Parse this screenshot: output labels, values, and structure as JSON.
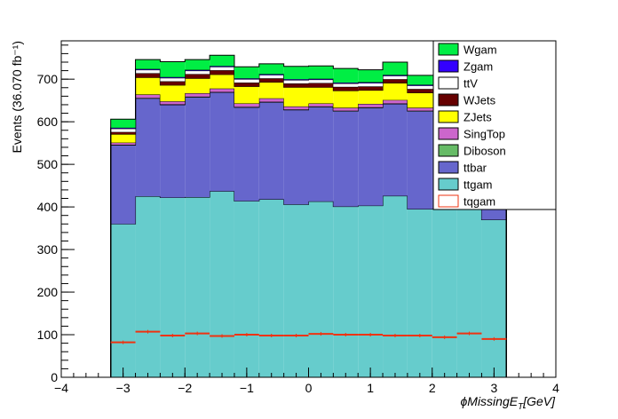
{
  "chart_data": {
    "type": "stacked-histogram",
    "xlabel": "φMissingE_T[GeV]",
    "ylabel": "Events (36.070 fb⁻¹)",
    "xlim": [
      -4,
      4
    ],
    "ylim": [
      0,
      790
    ],
    "x_ticks": [
      -4,
      -3,
      -2,
      -1,
      0,
      1,
      2,
      3,
      4
    ],
    "y_ticks": [
      0,
      100,
      200,
      300,
      400,
      500,
      600,
      700
    ],
    "bin_edges": [
      -3.2,
      -2.8,
      -2.4,
      -2.0,
      -1.6,
      -1.2,
      -0.8,
      -0.4,
      0.0,
      0.4,
      0.8,
      1.2,
      1.6,
      2.0,
      2.4,
      2.8,
      3.2
    ],
    "legend_position": "top-right",
    "series": [
      {
        "name": "ttgam",
        "color": "#66cccc",
        "values": [
          360,
          425,
          422,
          423,
          437,
          414,
          418,
          406,
          413,
          401,
          403,
          426,
          395,
          395,
          395,
          370
        ]
      },
      {
        "name": "ttbar",
        "color": "#6666cc",
        "values": [
          185,
          230,
          218,
          235,
          232,
          220,
          228,
          222,
          222,
          224,
          230,
          216,
          230,
          230,
          230,
          225
        ]
      },
      {
        "name": "Diboson",
        "color": "#66bb66",
        "values": [
          1,
          1,
          1,
          1,
          1,
          1,
          1,
          1,
          1,
          1,
          1,
          1,
          1,
          1,
          1,
          1
        ]
      },
      {
        "name": "SingTop",
        "color": "#cc66cc",
        "values": [
          5,
          8,
          7,
          8,
          8,
          8,
          8,
          7,
          7,
          7,
          8,
          8,
          7,
          7,
          7,
          6
        ]
      },
      {
        "name": "ZJets",
        "color": "#ffff00",
        "values": [
          20,
          40,
          38,
          35,
          33,
          40,
          38,
          45,
          38,
          40,
          32,
          40,
          35,
          35,
          35,
          28
        ]
      },
      {
        "name": "WJets",
        "color": "#660000",
        "values": [
          5,
          10,
          9,
          10,
          10,
          9,
          9,
          9,
          10,
          9,
          9,
          9,
          9,
          9,
          9,
          6
        ]
      },
      {
        "name": "ttV",
        "color": "#ffffff",
        "values": [
          8,
          8,
          8,
          8,
          8,
          8,
          8,
          8,
          8,
          8,
          8,
          8,
          8,
          8,
          8,
          8
        ]
      },
      {
        "name": "Zgam",
        "color": "#3300ff",
        "values": [
          2,
          2,
          2,
          2,
          2,
          2,
          2,
          2,
          2,
          2,
          2,
          2,
          2,
          2,
          2,
          2
        ]
      },
      {
        "name": "Wgam",
        "color": "#00ee44",
        "values": [
          20,
          22,
          36,
          24,
          25,
          27,
          24,
          30,
          30,
          33,
          29,
          30,
          22,
          22,
          22,
          20
        ]
      }
    ],
    "overlay": {
      "name": "tqgam",
      "color": "#ee3311",
      "values": [
        82,
        107,
        98,
        103,
        97,
        100,
        98,
        98,
        102,
        100,
        100,
        98,
        98,
        94,
        103,
        90
      ]
    }
  }
}
